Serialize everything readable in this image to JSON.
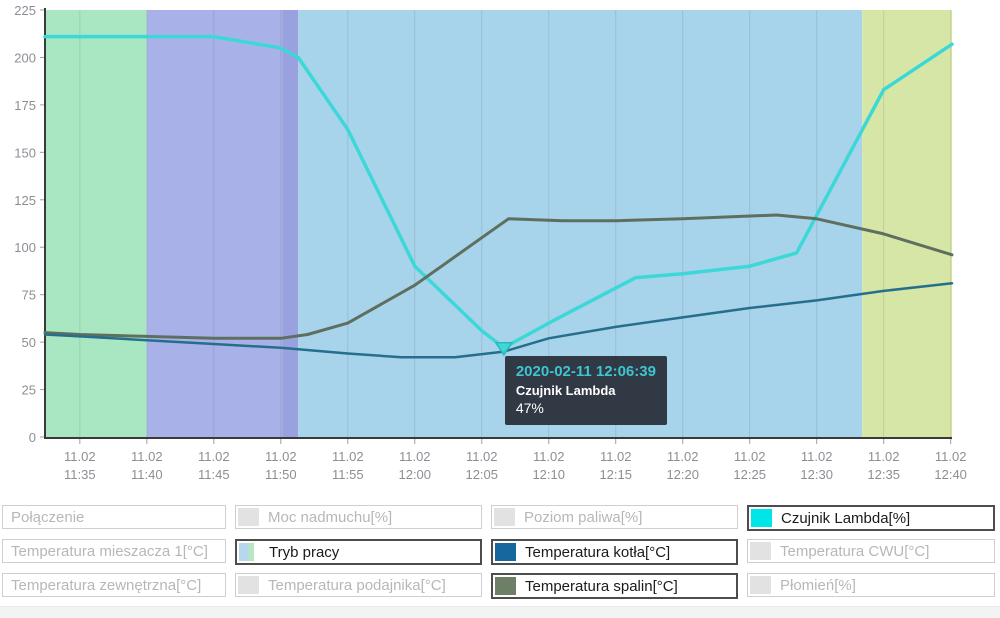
{
  "colors": {
    "band_green": "#a9e7c3",
    "band_purple": "#a9b2e8",
    "band_purple_dark": "#99a2de",
    "band_blue": "#a7d3eb",
    "band_yellow_green": "#d6e6a6",
    "axis": "#3a3a3a",
    "axis_text": "#8b8f94",
    "gridline": "rgba(40,50,60,0.12)",
    "lambda_line": "#3cd8d8",
    "lambda_swatch": "#00e5e5",
    "kotla_line": "#256f8d",
    "kotla_swatch": "#16679e",
    "spalin_line": "#5e6f60",
    "spalin_swatch": "#6e7f68",
    "tooltip_bg": "#2b323c",
    "tooltip_title": "#3ec4d2",
    "inactive_swatch": "#e2e2e2"
  },
  "chart_data": {
    "type": "line",
    "title": "",
    "xlabel": "",
    "ylabel": "",
    "ylim": [
      0,
      225
    ],
    "y_ticks": [
      0,
      25,
      50,
      75,
      100,
      125,
      150,
      175,
      200,
      225
    ],
    "x_domain_minutes": [
      -2.6,
      65.1
    ],
    "x_ticks": [
      {
        "t": 0,
        "date": "11.02",
        "time": "11:35"
      },
      {
        "t": 5,
        "date": "11.02",
        "time": "11:40"
      },
      {
        "t": 10,
        "date": "11.02",
        "time": "11:45"
      },
      {
        "t": 15,
        "date": "11.02",
        "time": "11:50"
      },
      {
        "t": 20,
        "date": "11.02",
        "time": "11:55"
      },
      {
        "t": 25,
        "date": "11.02",
        "time": "12:00"
      },
      {
        "t": 30,
        "date": "11.02",
        "time": "12:05"
      },
      {
        "t": 35,
        "date": "11.02",
        "time": "12:10"
      },
      {
        "t": 40,
        "date": "11.02",
        "time": "12:15"
      },
      {
        "t": 45,
        "date": "11.02",
        "time": "12:20"
      },
      {
        "t": 50,
        "date": "11.02",
        "time": "12:25"
      },
      {
        "t": 55,
        "date": "11.02",
        "time": "12:30"
      },
      {
        "t": 60,
        "date": "11.02",
        "time": "12:35"
      },
      {
        "t": 65,
        "date": "11.02",
        "time": "12:40"
      }
    ],
    "mode_bands": [
      {
        "id": "green",
        "mode_color_key": "band_green",
        "from": -2.6,
        "to": 5
      },
      {
        "id": "purple",
        "mode_color_key": "band_purple",
        "from": 5,
        "to": 15.1
      },
      {
        "id": "purple-dark",
        "mode_color_key": "band_purple_dark",
        "from": 15.1,
        "to": 16.3
      },
      {
        "id": "blue",
        "mode_color_key": "band_blue",
        "from": 16.3,
        "to": 58.4
      },
      {
        "id": "yellow-green",
        "mode_color_key": "band_yellow_green",
        "from": 58.4,
        "to": 65.1
      }
    ],
    "series": [
      {
        "name": "Czujnik Lambda[%]",
        "color_key": "lambda_line",
        "stroke_width": 3.5,
        "points": [
          [
            -2.6,
            211
          ],
          [
            0,
            211
          ],
          [
            5,
            211
          ],
          [
            10,
            211
          ],
          [
            15,
            205
          ],
          [
            16.3,
            200
          ],
          [
            20,
            162
          ],
          [
            25,
            90
          ],
          [
            30,
            56
          ],
          [
            31.65,
            47
          ],
          [
            35,
            60
          ],
          [
            41.5,
            84
          ],
          [
            45,
            86
          ],
          [
            50,
            90
          ],
          [
            53.5,
            97
          ],
          [
            60,
            183
          ],
          [
            65.1,
            207
          ]
        ]
      },
      {
        "name": "Temperatura spalin[°C]",
        "color_key": "spalin_line",
        "stroke_width": 3,
        "points": [
          [
            -2.6,
            55
          ],
          [
            0,
            54
          ],
          [
            5,
            53
          ],
          [
            10,
            52
          ],
          [
            15,
            52
          ],
          [
            17,
            54
          ],
          [
            20,
            60
          ],
          [
            25,
            80
          ],
          [
            30,
            105
          ],
          [
            32,
            115
          ],
          [
            36,
            114
          ],
          [
            40,
            114
          ],
          [
            45,
            115
          ],
          [
            52,
            117
          ],
          [
            55,
            115
          ],
          [
            60,
            107
          ],
          [
            65.1,
            96
          ]
        ]
      },
      {
        "name": "Temperatura kotła[°C]",
        "color_key": "kotla_line",
        "stroke_width": 2.5,
        "points": [
          [
            -2.6,
            54
          ],
          [
            0,
            53
          ],
          [
            5,
            51
          ],
          [
            10,
            49
          ],
          [
            15,
            47
          ],
          [
            20,
            44
          ],
          [
            24,
            42
          ],
          [
            28,
            42
          ],
          [
            31.65,
            45
          ],
          [
            35,
            52
          ],
          [
            40,
            58
          ],
          [
            45,
            63
          ],
          [
            50,
            68
          ],
          [
            55,
            72
          ],
          [
            60,
            77
          ],
          [
            65.1,
            81
          ]
        ]
      }
    ],
    "marker": {
      "series": "Czujnik Lambda",
      "t": 31.65,
      "v": 47
    },
    "tooltip": {
      "datetime": "2020-02-11 12:06:39",
      "series": "Czujnik Lambda",
      "value": "47%"
    },
    "legend_position": "bottom",
    "grid": "vertical-only"
  },
  "legend": {
    "items": [
      {
        "id": "polaczenie",
        "label": "Połączenie",
        "active": false,
        "swatch": "none"
      },
      {
        "id": "moc-nadmuchu",
        "label": "Moc nadmuchu[%]",
        "active": false,
        "swatch": "gray"
      },
      {
        "id": "poziom-paliwa",
        "label": "Poziom paliwa[%]",
        "active": false,
        "swatch": "gray"
      },
      {
        "id": "czujnik-lambda",
        "label": "Czujnik Lambda[%]",
        "active": true,
        "swatch": "cyan"
      },
      {
        "id": "temperatura-mieszacza-1",
        "label": "Temperatura mieszacza 1[°C]",
        "active": false,
        "swatch": "none"
      },
      {
        "id": "tryb-pracy",
        "label": "Tryb pracy",
        "active": true,
        "swatch": "mode"
      },
      {
        "id": "temperatura-kotla",
        "label": "Temperatura kotła[°C]",
        "active": true,
        "swatch": "blue"
      },
      {
        "id": "temperatura-cwu",
        "label": "Temperatura CWU[°C]",
        "active": false,
        "swatch": "gray"
      },
      {
        "id": "temperatura-zewnetrzna",
        "label": "Temperatura zewnętrzna[°C]",
        "active": false,
        "swatch": "none"
      },
      {
        "id": "temperatura-podajnika",
        "label": "Temperatura podajnika[°C]",
        "active": false,
        "swatch": "gray"
      },
      {
        "id": "temperatura-spalin",
        "label": "Temperatura spalin[°C]",
        "active": true,
        "swatch": "greengray"
      },
      {
        "id": "plomien",
        "label": "Płomień[%]",
        "active": false,
        "swatch": "gray"
      }
    ]
  }
}
